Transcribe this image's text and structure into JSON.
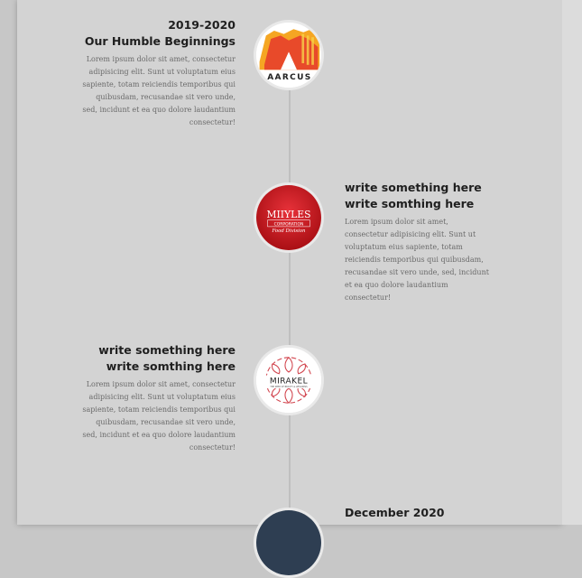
{
  "timeline": {
    "items": [
      {
        "line1": "2019-2020",
        "line2": "Our Humble Beginnings",
        "body": "Lorem ipsum dolor sit amet, consectetur adipisicing elit. Sunt ut voluptatum eius sapiente, totam reiciendis temporibus qui quibusdam, recusandae sit vero unde, sed, incidunt et ea quo dolore laudantium consectetur!",
        "logo_text": "AARCUS"
      },
      {
        "line1": "write something here",
        "line2": "write somthing here",
        "body": "Lorem ipsum dolor sit amet, consectetur adipisicing elit. Sunt ut voluptatum eius sapiente, totam reiciendis temporibus qui quibusdam, recusandae sit vero unde, sed, incidunt et ea quo dolore laudantium consectetur!",
        "logo_text": "MIIYLES",
        "logo_sub": "CORPORATION",
        "logo_sub2": "Food Division"
      },
      {
        "line1": "write something here",
        "line2": "write somthing here",
        "body": "Lorem ipsum dolor sit amet, consectetur adipisicing elit. Sunt ut voluptatum eius sapiente, totam reiciendis temporibus qui quibusdam, recusandae sit vero unde, sed, incidunt et ea quo dolore laudantium consectetur!",
        "logo_text": "MIRAKEL",
        "logo_sub": "THE SEED OF BEAUTY & WELLNESS"
      },
      {
        "line1": "December 2020"
      }
    ]
  },
  "colors": {
    "panel": "#d3d3d3",
    "title": "#1f1f1f",
    "body": "#6a6a6a",
    "miiyles_red": "#c8151b",
    "mirakel_pink": "#d2464f"
  }
}
